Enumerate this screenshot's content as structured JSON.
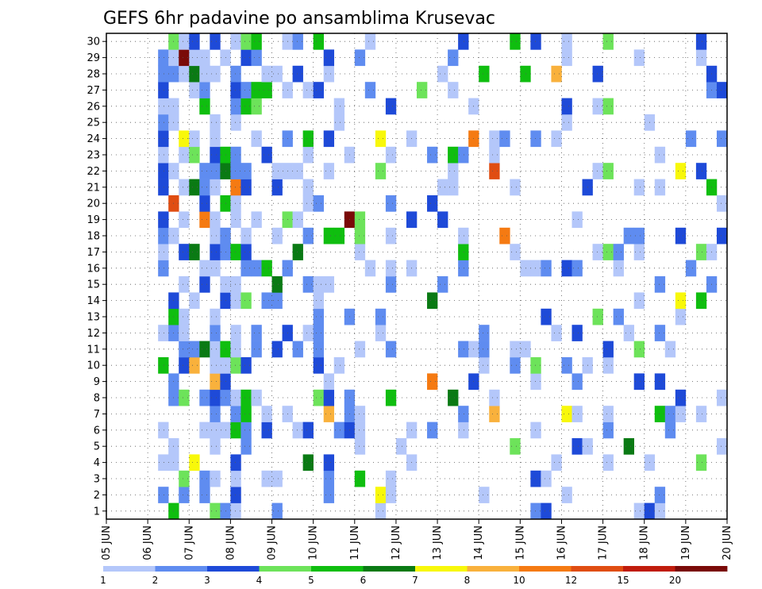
{
  "chart_data": {
    "type": "heatmap",
    "title": "GEFS 6hr padavine po ansamblima Krusevac",
    "x_labels": [
      "05 JUN",
      "06 JUN",
      "07 JUN",
      "08 JUN",
      "09 JUN",
      "10 JUN",
      "11 JUN",
      "12 JUN",
      "13 JUN",
      "14 JUN",
      "15 JUN",
      "16 JUN",
      "17 JUN",
      "18 JUN",
      "19 JUN",
      "20 JUN"
    ],
    "y_labels": [
      "1",
      "2",
      "3",
      "4",
      "5",
      "6",
      "7",
      "8",
      "9",
      "10",
      "11",
      "12",
      "13",
      "14",
      "15",
      "16",
      "17",
      "18",
      "19",
      "20",
      "21",
      "22",
      "23",
      "24",
      "25",
      "26",
      "27",
      "28",
      "29",
      "30"
    ],
    "grid": true,
    "colorbar": {
      "labels": [
        "1",
        "2",
        "3",
        "4",
        "5",
        "6",
        "7",
        "8",
        "10",
        "12",
        "15",
        "20"
      ],
      "colors": [
        "#b4c7fa",
        "#5f8cf0",
        "#1e4ad8",
        "#6de35a",
        "#0fbe0f",
        "#0a7a14",
        "#f8f80a",
        "#f9b13c",
        "#f57a12",
        "#e04d12",
        "#c01c0c",
        "#7a0a08"
      ]
    },
    "cells": [
      [
        1,
        3,
        7
      ],
      [
        1,
        9,
        3
      ],
      [
        1,
        10,
        2
      ],
      [
        1,
        12,
        2
      ],
      [
        1,
        13,
        2
      ],
      [
        1,
        17,
        1
      ],
      [
        1,
        19,
        1
      ],
      [
        1,
        20,
        2
      ],
      [
        1,
        21,
        3
      ],
      [
        1,
        22,
        3
      ],
      [
        1,
        23,
        3
      ],
      [
        1,
        26,
        2
      ],
      [
        1,
        27,
        2
      ],
      [
        1,
        28,
        2
      ],
      [
        1,
        29,
        2
      ],
      [
        1,
        30,
        1
      ],
      [
        1,
        34,
        2
      ],
      [
        1,
        53,
        1
      ],
      [
        1,
        59,
        3
      ],
      [
        1,
        68,
        1
      ],
      [
        1,
        70,
        1
      ],
      [
        1,
        72,
        1
      ],
      [
        1,
        73,
        3
      ],
      [
        1,
        75,
        1
      ],
      [
        1,
        79,
        3
      ],
      [
        1,
        84,
        2
      ],
      [
        1,
        85,
        2
      ],
      [
        1,
        88,
        6
      ],
      [
        1,
        91,
        4
      ],
      [
        1,
        93,
        1
      ],
      [
        1,
        104,
        6
      ],
      [
        1,
        113,
        4
      ],
      [
        1,
        116,
        1
      ],
      [
        1,
        118,
        6
      ],
      [
        1,
        125,
        4
      ],
      [
        1,
        126,
        5
      ],
      [
        1,
        128,
        6
      ],
      [
        2,
        3,
        2
      ],
      [
        2,
        4,
        3
      ],
      [
        2,
        5,
        3
      ],
      [
        2,
        6,
        2
      ],
      [
        2,
        7,
        1
      ],
      [
        2,
        8,
        1
      ],
      [
        2,
        9,
        1
      ],
      [
        2,
        10,
        1
      ],
      [
        2,
        11,
        1
      ],
      [
        2,
        12,
        1
      ],
      [
        2,
        13,
        1
      ],
      [
        2,
        14,
        2
      ],
      [
        2,
        15,
        3
      ],
      [
        2,
        16,
        3
      ],
      [
        2,
        17,
        2
      ],
      [
        2,
        18,
        1
      ],
      [
        2,
        19,
        1
      ],
      [
        2,
        20,
        1
      ],
      [
        2,
        21,
        1
      ],
      [
        2,
        22,
        1
      ],
      [
        2,
        23,
        2
      ],
      [
        2,
        26,
        4
      ],
      [
        2,
        27,
        4
      ],
      [
        2,
        28,
        4
      ],
      [
        2,
        29,
        4
      ],
      [
        2,
        30,
        4
      ],
      [
        2,
        31,
        4
      ],
      [
        2,
        32,
        4
      ],
      [
        2,
        33,
        4
      ],
      [
        2,
        34,
        4
      ],
      [
        2,
        35,
        4
      ],
      [
        2,
        36,
        4
      ],
      [
        2,
        37,
        4
      ],
      [
        2,
        38,
        4
      ],
      [
        2,
        39,
        4
      ],
      [
        2,
        40,
        4
      ],
      [
        2,
        41,
        4
      ],
      [
        2,
        42,
        4
      ],
      [
        2,
        43,
        3
      ],
      [
        2,
        44,
        3
      ],
      [
        2,
        45,
        2
      ],
      [
        2,
        46,
        2
      ],
      [
        2,
        47,
        2
      ],
      [
        2,
        48,
        2
      ],
      [
        2,
        49,
        2
      ],
      [
        2,
        50,
        2
      ],
      [
        2,
        51,
        4
      ],
      [
        2,
        52,
        4
      ],
      [
        2,
        53,
        4
      ],
      [
        2,
        54,
        4
      ],
      [
        2,
        55,
        3
      ],
      [
        2,
        56,
        3
      ],
      [
        2,
        57,
        1
      ],
      [
        2,
        58,
        1
      ],
      [
        2,
        59,
        1
      ],
      [
        2,
        60,
        1
      ],
      [
        2,
        61,
        1
      ],
      [
        2,
        62,
        2
      ],
      [
        2,
        63,
        2
      ],
      [
        2,
        64,
        2
      ],
      [
        2,
        65,
        2
      ],
      [
        2,
        66,
        2
      ],
      [
        2,
        67,
        2
      ],
      [
        2,
        68,
        2
      ],
      [
        2,
        69,
        3
      ],
      [
        2,
        70,
        3
      ],
      [
        2,
        71,
        4
      ],
      [
        2,
        72,
        4
      ],
      [
        2,
        73,
        4
      ],
      [
        2,
        74,
        4
      ],
      [
        2,
        75,
        4
      ],
      [
        2,
        76,
        4
      ],
      [
        2,
        77,
        4
      ],
      [
        2,
        78,
        4
      ],
      [
        2,
        79,
        4
      ],
      [
        2,
        80,
        4
      ],
      [
        2,
        81,
        4
      ],
      [
        2,
        82,
        5
      ],
      [
        2,
        83,
        5
      ],
      [
        2,
        84,
        4
      ],
      [
        2,
        85,
        4
      ],
      [
        2,
        86,
        4
      ],
      [
        2,
        87,
        3
      ],
      [
        2,
        88,
        3
      ],
      [
        2,
        89,
        4
      ],
      [
        2,
        90,
        4
      ],
      [
        2,
        91,
        4
      ],
      [
        2,
        92,
        3
      ],
      [
        2,
        93,
        3
      ],
      [
        2,
        94,
        3
      ],
      [
        2,
        95,
        3
      ],
      [
        2,
        96,
        3
      ],
      [
        2,
        97,
        3
      ],
      [
        2,
        98,
        3
      ],
      [
        2,
        99,
        3
      ],
      [
        2,
        100,
        3
      ],
      [
        2,
        101,
        3
      ],
      [
        2,
        102,
        3
      ],
      [
        2,
        103,
        3
      ],
      [
        2,
        104,
        3
      ],
      [
        2,
        105,
        3
      ],
      [
        2,
        106,
        3
      ],
      [
        2,
        107,
        3
      ],
      [
        2,
        108,
        3
      ],
      [
        2,
        109,
        3
      ],
      [
        2,
        110,
        3
      ],
      [
        2,
        111,
        3
      ],
      [
        2,
        112,
        3
      ],
      [
        2,
        113,
        3
      ],
      [
        2,
        114,
        3
      ],
      [
        2,
        115,
        3
      ],
      [
        2,
        116,
        3
      ],
      [
        2,
        117,
        3
      ],
      [
        2,
        118,
        3
      ],
      [
        2,
        119,
        3
      ],
      [
        2,
        120,
        3
      ],
      [
        2,
        121,
        3
      ],
      [
        2,
        122,
        3
      ],
      [
        2,
        123,
        3
      ],
      [
        2,
        124,
        3
      ],
      [
        2,
        125,
        3
      ],
      [
        2,
        126,
        3
      ],
      [
        2,
        127,
        3
      ],
      [
        2,
        128,
        3
      ],
      [
        3,
        8,
        1
      ],
      [
        3,
        9,
        1
      ],
      [
        3,
        10,
        1
      ],
      [
        3,
        11,
        1
      ],
      [
        3,
        12,
        1
      ],
      [
        3,
        13,
        1
      ],
      [
        3,
        14,
        1
      ],
      [
        3,
        15,
        1
      ],
      [
        3,
        16,
        3
      ],
      [
        3,
        17,
        3
      ],
      [
        3,
        18,
        2
      ],
      [
        3,
        19,
        2
      ],
      [
        3,
        20,
        2
      ],
      [
        3,
        21,
        2
      ],
      [
        3,
        22,
        3
      ],
      [
        3,
        23,
        3
      ],
      [
        3,
        24,
        2
      ],
      [
        3,
        25,
        2
      ],
      [
        3,
        26,
        2
      ],
      [
        3,
        27,
        2
      ],
      [
        3,
        28,
        2
      ],
      [
        3,
        29,
        2
      ],
      [
        3,
        30,
        2
      ],
      [
        3,
        31,
        2
      ],
      [
        3,
        32,
        3
      ],
      [
        3,
        33,
        3
      ],
      [
        3,
        34,
        4
      ],
      [
        3,
        35,
        4
      ],
      [
        3,
        36,
        4
      ],
      [
        3,
        37,
        3
      ],
      [
        3,
        38,
        3
      ],
      [
        3,
        39,
        3
      ],
      [
        3,
        40,
        3
      ],
      [
        3,
        41,
        2
      ],
      [
        3,
        42,
        2
      ],
      [
        3,
        43,
        2
      ],
      [
        3,
        44,
        2
      ],
      [
        3,
        45,
        2
      ],
      [
        3,
        46,
        2
      ],
      [
        3,
        47,
        1
      ],
      [
        3,
        48,
        1
      ],
      [
        3,
        49,
        1
      ],
      [
        3,
        50,
        1
      ],
      [
        3,
        51,
        1
      ],
      [
        3,
        52,
        1
      ],
      [
        3,
        53,
        1
      ],
      [
        3,
        54,
        1
      ],
      [
        3,
        55,
        1
      ],
      [
        3,
        56,
        1
      ],
      [
        3,
        57,
        1
      ],
      [
        3,
        58,
        1
      ],
      [
        3,
        59,
        2
      ],
      [
        3,
        60,
        2
      ],
      [
        3,
        61,
        2
      ],
      [
        3,
        62,
        2
      ],
      [
        3,
        63,
        2
      ],
      [
        3,
        64,
        2
      ],
      [
        3,
        65,
        2
      ],
      [
        3,
        66,
        2
      ],
      [
        3,
        67,
        1
      ],
      [
        3,
        68,
        1
      ],
      [
        3,
        69,
        1
      ],
      [
        3,
        70,
        1
      ],
      [
        3,
        71,
        1
      ],
      [
        3,
        72,
        1
      ],
      [
        3,
        73,
        1
      ],
      [
        3,
        74,
        1
      ],
      [
        3,
        75,
        1
      ],
      [
        3,
        76,
        1
      ],
      [
        3,
        77,
        1
      ],
      [
        3,
        78,
        1
      ],
      [
        3,
        79,
        2
      ],
      [
        3,
        80,
        2
      ],
      [
        3,
        81,
        3
      ],
      [
        3,
        82,
        3
      ],
      [
        3,
        83,
        2
      ],
      [
        3,
        84,
        2
      ],
      [
        3,
        85,
        1
      ],
      [
        3,
        86,
        1
      ],
      [
        3,
        87,
        1
      ],
      [
        3,
        88,
        1
      ],
      [
        3,
        89,
        1
      ],
      [
        3,
        90,
        1
      ],
      [
        3,
        91,
        1
      ],
      [
        3,
        92,
        1
      ],
      [
        3,
        93,
        1
      ],
      [
        3,
        94,
        1
      ],
      [
        3,
        95,
        1
      ],
      [
        3,
        96,
        1
      ],
      [
        3,
        97,
        1
      ],
      [
        3,
        98,
        1
      ],
      [
        3,
        99,
        1
      ],
      [
        3,
        100,
        1
      ],
      [
        3,
        101,
        1
      ],
      [
        3,
        102,
        1
      ],
      [
        3,
        103,
        1
      ],
      [
        3,
        104,
        1
      ],
      [
        3,
        105,
        1
      ],
      [
        3,
        106,
        1
      ],
      [
        3,
        107,
        1
      ],
      [
        3,
        108,
        1
      ],
      [
        3,
        109,
        1
      ],
      [
        3,
        110,
        1
      ],
      [
        3,
        111,
        1
      ],
      [
        3,
        112,
        1
      ],
      [
        3,
        113,
        1
      ],
      [
        3,
        114,
        1
      ],
      [
        3,
        115,
        1
      ],
      [
        3,
        116,
        1
      ],
      [
        3,
        117,
        1
      ],
      [
        3,
        118,
        1
      ],
      [
        3,
        119,
        1
      ],
      [
        3,
        120,
        1
      ],
      [
        3,
        121,
        1
      ],
      [
        3,
        122,
        1
      ],
      [
        3,
        123,
        1
      ],
      [
        3,
        124,
        1
      ],
      [
        3,
        125,
        1
      ],
      [
        3,
        126,
        1
      ],
      [
        3,
        127,
        1
      ],
      [
        3,
        128,
        1
      ]
    ]
  }
}
